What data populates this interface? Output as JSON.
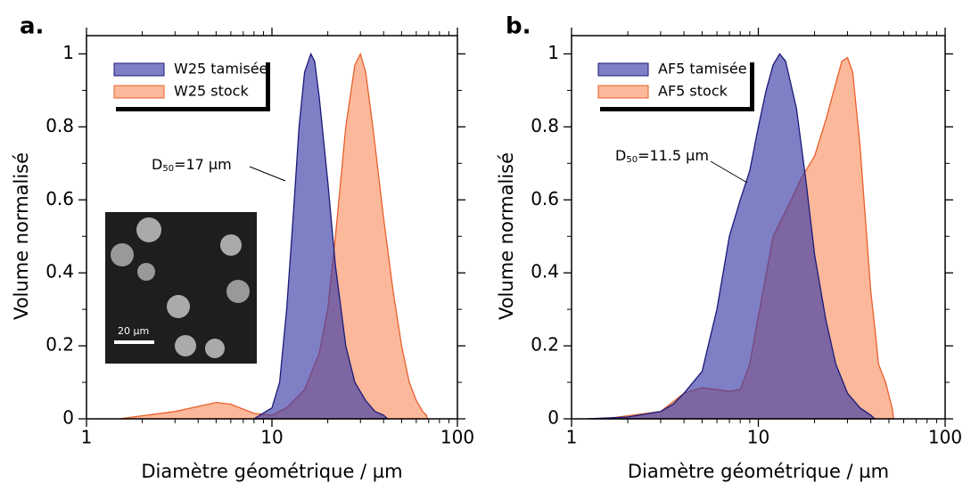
{
  "chart_data": [
    {
      "panel_label": "a.",
      "type": "area",
      "xscale": "log",
      "xlim": [
        1,
        100
      ],
      "xticks": [
        1,
        10,
        100
      ],
      "x_minor_ticks": [
        2,
        3,
        4,
        5,
        6,
        7,
        8,
        9,
        20,
        30,
        40,
        50,
        60,
        70,
        80,
        90
      ],
      "ylim": [
        0,
        1.05
      ],
      "yticks": [
        0,
        0.2,
        0.4,
        0.6,
        0.8,
        1
      ],
      "y_minor_ticks": [
        0.1,
        0.3,
        0.5,
        0.7,
        0.9
      ],
      "xlabel": "Diamètre géométrique / µm",
      "ylabel": "Volume normalisé",
      "legend": "upper left",
      "series": [
        {
          "name": "W25 tamisée",
          "color": "#1a1a7a",
          "fill": "#3a3aa6",
          "fill_opacity": 0.65,
          "x": [
            8,
            10,
            11,
            12,
            13,
            14,
            15,
            16.2,
            17,
            18,
            20,
            22,
            25,
            28,
            32,
            36,
            40,
            42
          ],
          "values": [
            0,
            0.03,
            0.1,
            0.3,
            0.55,
            0.8,
            0.95,
            1,
            0.98,
            0.88,
            0.65,
            0.42,
            0.2,
            0.1,
            0.05,
            0.02,
            0.01,
            0
          ]
        },
        {
          "name": "W25 stock",
          "color": "#e8602c",
          "fill": "#fcb89a",
          "fill_opacity": 1,
          "x": [
            1.5,
            3,
            5,
            6,
            8,
            10,
            12,
            15,
            18,
            20,
            22,
            25,
            28,
            30,
            32,
            35,
            40,
            45,
            50,
            55,
            60,
            65,
            68,
            69
          ],
          "values": [
            0,
            0.02,
            0.045,
            0.04,
            0.015,
            0.01,
            0.03,
            0.08,
            0.18,
            0.3,
            0.5,
            0.8,
            0.97,
            1,
            0.95,
            0.8,
            0.55,
            0.35,
            0.2,
            0.1,
            0.05,
            0.02,
            0.01,
            0
          ]
        }
      ],
      "annotation": {
        "main": "D",
        "subscript": "50",
        "text": "=17 µm"
      },
      "inset_scale_label": "20 µm"
    },
    {
      "panel_label": "b.",
      "type": "area",
      "xscale": "log",
      "xlim": [
        1,
        100
      ],
      "xticks": [
        1,
        10,
        100
      ],
      "x_minor_ticks": [
        2,
        3,
        4,
        5,
        6,
        7,
        8,
        9,
        20,
        30,
        40,
        50,
        60,
        70,
        80,
        90
      ],
      "ylim": [
        0,
        1.05
      ],
      "yticks": [
        0,
        0.2,
        0.4,
        0.6,
        0.8,
        1
      ],
      "y_minor_ticks": [
        0.1,
        0.3,
        0.5,
        0.7,
        0.9
      ],
      "xlabel": "Diamètre géométrique / µm",
      "ylabel": "Volume normalisé",
      "legend": "upper left",
      "series": [
        {
          "name": "AF5 tamisée",
          "color": "#1a1a7a",
          "fill": "#3a3aa6",
          "fill_opacity": 0.65,
          "x": [
            1.2,
            2,
            3,
            3.5,
            4,
            5,
            6,
            7,
            8,
            9,
            10,
            11,
            12,
            13,
            14,
            16,
            18,
            20,
            23,
            26,
            30,
            35,
            40,
            42
          ],
          "values": [
            0,
            0.005,
            0.02,
            0.04,
            0.07,
            0.13,
            0.3,
            0.5,
            0.6,
            0.68,
            0.8,
            0.9,
            0.97,
            1,
            0.98,
            0.85,
            0.65,
            0.45,
            0.27,
            0.15,
            0.07,
            0.03,
            0.01,
            0
          ]
        },
        {
          "name": "AF5 stock",
          "color": "#e8602c",
          "fill": "#fcb89a",
          "fill_opacity": 1,
          "x": [
            1.5,
            3,
            4,
            5,
            6,
            7,
            8,
            9,
            10,
            12,
            15,
            17,
            20,
            23,
            26,
            28,
            30,
            32,
            35,
            38,
            40,
            42,
            44,
            48,
            52,
            53
          ],
          "values": [
            0,
            0.02,
            0.07,
            0.085,
            0.08,
            0.075,
            0.08,
            0.15,
            0.28,
            0.5,
            0.6,
            0.66,
            0.72,
            0.82,
            0.92,
            0.98,
            0.99,
            0.95,
            0.75,
            0.5,
            0.35,
            0.25,
            0.15,
            0.1,
            0.03,
            0
          ]
        }
      ],
      "annotation": {
        "main": "D",
        "subscript": "50",
        "text": "=11.5 µm"
      }
    }
  ]
}
